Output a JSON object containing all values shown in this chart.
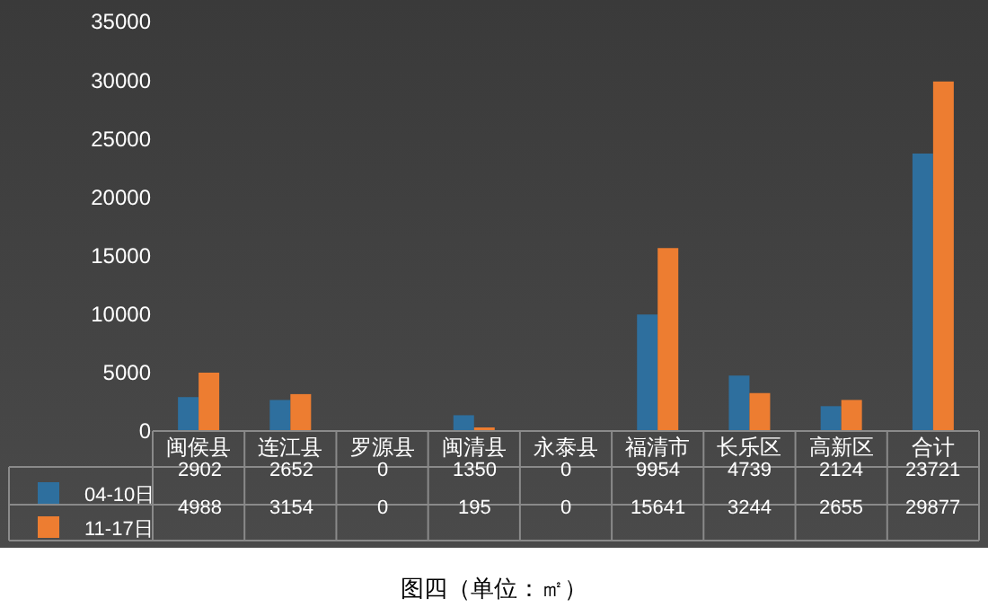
{
  "chart_data": {
    "type": "bar",
    "title": "图四（单位：㎡）",
    "categories": [
      "闽侯县",
      "连江县",
      "罗源县",
      "闽清县",
      "永泰县",
      "福清市",
      "长乐区",
      "高新区",
      "合计"
    ],
    "series": [
      {
        "name": "04-10日",
        "color": "#2e6f9e",
        "values": [
          2902,
          2652,
          0,
          1350,
          0,
          9954,
          4739,
          2124,
          23721
        ]
      },
      {
        "name": "11-17日",
        "color": "#ed7d31",
        "values": [
          4988,
          3154,
          0,
          195,
          0,
          15641,
          3244,
          2655,
          29877
        ]
      }
    ],
    "ylim": [
      0,
      35000
    ],
    "yticks": [
      0,
      5000,
      10000,
      15000,
      20000,
      25000,
      30000,
      35000
    ],
    "grid": false,
    "legend": "bottom left",
    "data_labels": true
  }
}
